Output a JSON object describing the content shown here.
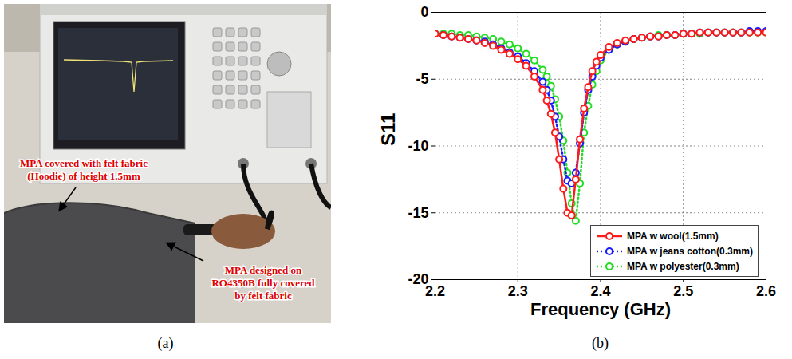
{
  "panel_a": {
    "label": "(a)",
    "annotations": [
      {
        "lines": [
          "MPA covered with felt fabric",
          "(Hoodie) of  height 1.5mm"
        ]
      },
      {
        "lines": [
          "MPA designed on",
          "RO4350B fully covered",
          "by felt fabric"
        ]
      }
    ]
  },
  "chart_data": {
    "type": "line",
    "panel_label": "(b)",
    "xlabel": "Frequency (GHz)",
    "ylabel": "S11",
    "x": [
      2.2,
      2.21,
      2.22,
      2.23,
      2.24,
      2.25,
      2.26,
      2.27,
      2.28,
      2.29,
      2.3,
      2.31,
      2.32,
      2.33,
      2.335,
      2.34,
      2.345,
      2.35,
      2.355,
      2.36,
      2.365,
      2.37,
      2.375,
      2.38,
      2.385,
      2.39,
      2.395,
      2.4,
      2.41,
      2.42,
      2.43,
      2.44,
      2.45,
      2.46,
      2.47,
      2.48,
      2.49,
      2.5,
      2.51,
      2.52,
      2.53,
      2.54,
      2.55,
      2.56,
      2.57,
      2.58,
      2.59,
      2.6
    ],
    "xlim": [
      2.2,
      2.6
    ],
    "xticks": [
      2.2,
      2.3,
      2.4,
      2.5,
      2.6
    ],
    "ylim": [
      -20,
      0
    ],
    "yticks": [
      0,
      -5,
      -10,
      -15,
      -20
    ],
    "grid": true,
    "legend": "lower right",
    "series": [
      {
        "name": "MPA w wool(1.5mm)",
        "color": "#ff1a1a",
        "marker": "circle",
        "line_style": "solid",
        "values": [
          -1.6,
          -1.7,
          -1.8,
          -1.9,
          -2.0,
          -2.1,
          -2.3,
          -2.5,
          -2.8,
          -3.1,
          -3.5,
          -4.0,
          -4.8,
          -5.8,
          -6.6,
          -7.6,
          -9.0,
          -11.0,
          -13.2,
          -15.0,
          -15.2,
          -12.5,
          -9.5,
          -7.2,
          -5.6,
          -4.4,
          -3.7,
          -3.2,
          -2.6,
          -2.3,
          -2.1,
          -2.0,
          -1.9,
          -1.8,
          -1.8,
          -1.7,
          -1.7,
          -1.6,
          -1.6,
          -1.5,
          -1.5,
          -1.5,
          -1.5,
          -1.5,
          -1.5,
          -1.5,
          -1.5,
          -1.5
        ]
      },
      {
        "name": "MPA w jeans cotton(0.3mm)",
        "color": "#1a1aff",
        "marker": "circle",
        "line_style": "dotted",
        "values": [
          -1.6,
          -1.7,
          -1.8,
          -1.9,
          -2.0,
          -2.1,
          -2.2,
          -2.4,
          -2.7,
          -3.0,
          -3.3,
          -3.8,
          -4.4,
          -5.2,
          -5.8,
          -6.6,
          -7.8,
          -9.3,
          -11.0,
          -12.6,
          -12.8,
          -12.0,
          -9.8,
          -7.5,
          -5.8,
          -4.8,
          -4.0,
          -3.4,
          -2.8,
          -2.4,
          -2.2,
          -2.0,
          -1.9,
          -1.8,
          -1.8,
          -1.7,
          -1.7,
          -1.6,
          -1.6,
          -1.5,
          -1.5,
          -1.5,
          -1.5,
          -1.5,
          -1.5,
          -1.4,
          -1.4,
          -1.4
        ]
      },
      {
        "name": "MPA w polyester(0.3mm)",
        "color": "#22dd22",
        "marker": "circle",
        "line_style": "dotted",
        "values": [
          -1.6,
          -1.6,
          -1.6,
          -1.7,
          -1.7,
          -1.8,
          -1.9,
          -2.0,
          -2.2,
          -2.4,
          -2.7,
          -3.1,
          -3.6,
          -4.3,
          -4.8,
          -5.5,
          -6.5,
          -7.8,
          -9.6,
          -12.0,
          -14.3,
          -15.6,
          -12.8,
          -9.0,
          -7.0,
          -5.4,
          -4.4,
          -3.6,
          -2.8,
          -2.4,
          -2.2,
          -2.0,
          -1.9,
          -1.8,
          -1.7,
          -1.7,
          -1.7,
          -1.6,
          -1.6,
          -1.6,
          -1.5,
          -1.5,
          -1.5,
          -1.5,
          -1.5,
          -1.5,
          -1.5,
          -1.5
        ]
      }
    ]
  }
}
